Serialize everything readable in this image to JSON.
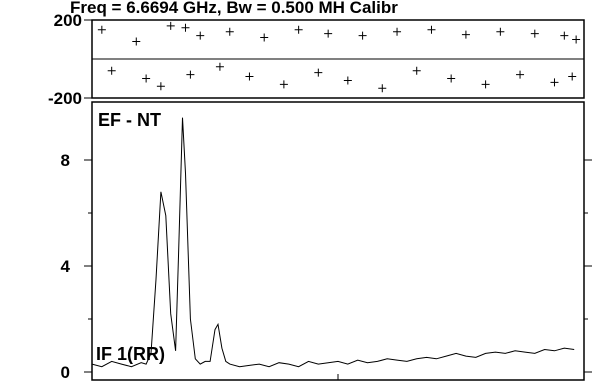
{
  "chart_data": [
    {
      "type": "scatter",
      "title": "Freq = 6.6694 GHz, Bw = 0.500 MH   Calibr",
      "ylim": [
        -200,
        200
      ],
      "yticks": [
        "200",
        "-200"
      ],
      "reference_line": 0,
      "xlim": [
        0,
        500
      ],
      "marker": "+",
      "grid": false,
      "series": [
        {
          "x": [
            10,
            45,
            80,
            95,
            110,
            140,
            175,
            210,
            240,
            275,
            310,
            345,
            380,
            415,
            450,
            480,
            492
          ],
          "values": [
            150,
            90,
            170,
            160,
            120,
            140,
            110,
            150,
            130,
            120,
            140,
            150,
            125,
            140,
            130,
            120,
            100
          ]
        },
        {
          "x": [
            20,
            55,
            70,
            100,
            130,
            160,
            195,
            230,
            260,
            295,
            330,
            365,
            400,
            435,
            470,
            488
          ],
          "values": [
            -60,
            -100,
            -140,
            -80,
            -40,
            -90,
            -130,
            -70,
            -110,
            -150,
            -60,
            -100,
            -130,
            -80,
            -120,
            -90
          ]
        }
      ]
    },
    {
      "type": "line",
      "ylim": [
        0,
        10
      ],
      "yticks": [
        "0",
        "4",
        "8"
      ],
      "xlim": [
        0,
        500
      ],
      "grid": false,
      "annotations": [
        "EF - NT",
        "IF 1(RR)"
      ],
      "series": [
        {
          "x": [
            0,
            10,
            20,
            30,
            40,
            50,
            55,
            60,
            65,
            70,
            75,
            80,
            85,
            88,
            92,
            95,
            100,
            105,
            110,
            115,
            120,
            125,
            128,
            132,
            136,
            140,
            150,
            160,
            170,
            180,
            190,
            200,
            210,
            220,
            230,
            240,
            250,
            260,
            270,
            280,
            290,
            300,
            310,
            320,
            330,
            340,
            350,
            360,
            370,
            380,
            390,
            400,
            410,
            420,
            430,
            440,
            450,
            460,
            470,
            480,
            490
          ],
          "values": [
            0.3,
            0.2,
            0.4,
            0.3,
            0.2,
            0.35,
            0.3,
            0.7,
            3.5,
            6.8,
            5.9,
            2.2,
            0.8,
            4.5,
            9.6,
            7.5,
            2.0,
            0.5,
            0.3,
            0.4,
            0.4,
            1.6,
            1.8,
            0.9,
            0.4,
            0.3,
            0.2,
            0.25,
            0.3,
            0.2,
            0.35,
            0.3,
            0.2,
            0.4,
            0.3,
            0.35,
            0.4,
            0.3,
            0.45,
            0.35,
            0.4,
            0.5,
            0.45,
            0.4,
            0.5,
            0.55,
            0.5,
            0.6,
            0.7,
            0.6,
            0.55,
            0.7,
            0.75,
            0.7,
            0.8,
            0.75,
            0.7,
            0.85,
            0.8,
            0.9,
            0.85
          ]
        }
      ]
    }
  ]
}
